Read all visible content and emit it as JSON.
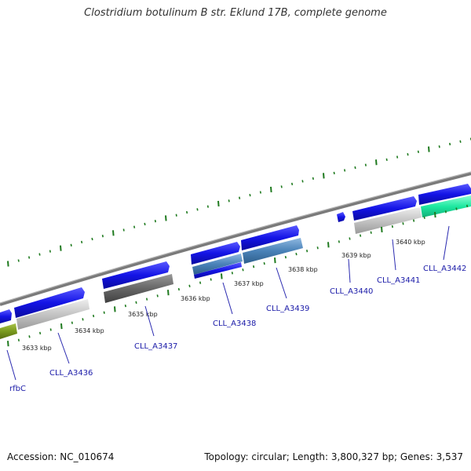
{
  "title": "Clostridium botulinum B str. Eklund 17B, complete genome",
  "footer": {
    "accession": "Accession: NC_010674",
    "summary": "Topology: circular; Length: 3,800,327 bp; Genes: 3,537"
  },
  "colors": {
    "backbone": "#888888",
    "cds": "#1414e6",
    "tick": "#1f7a1f",
    "label": "#1a1aa8",
    "grey_gene": "#c8c8c8",
    "dark_grey_gene": "#6a6a6a",
    "steel_blue_gene": "#4a82b8",
    "teal_gene": "#1ee8a0",
    "olive_gene": "#7a9a1e"
  },
  "ticks": {
    "labels": [
      "3633 kbp",
      "3634 kbp",
      "3635 kbp",
      "3636 kbp",
      "3637 kbp",
      "3638 kbp",
      "3639 kbp",
      "3640 kbp"
    ]
  },
  "genes": [
    {
      "name": "rfbC"
    },
    {
      "name": "CLL_A3436"
    },
    {
      "name": "CLL_A3437"
    },
    {
      "name": "CLL_A3438"
    },
    {
      "name": "CLL_A3439"
    },
    {
      "name": "CLL_A3440"
    },
    {
      "name": "CLL_A3441"
    },
    {
      "name": "CLL_A3442"
    }
  ]
}
